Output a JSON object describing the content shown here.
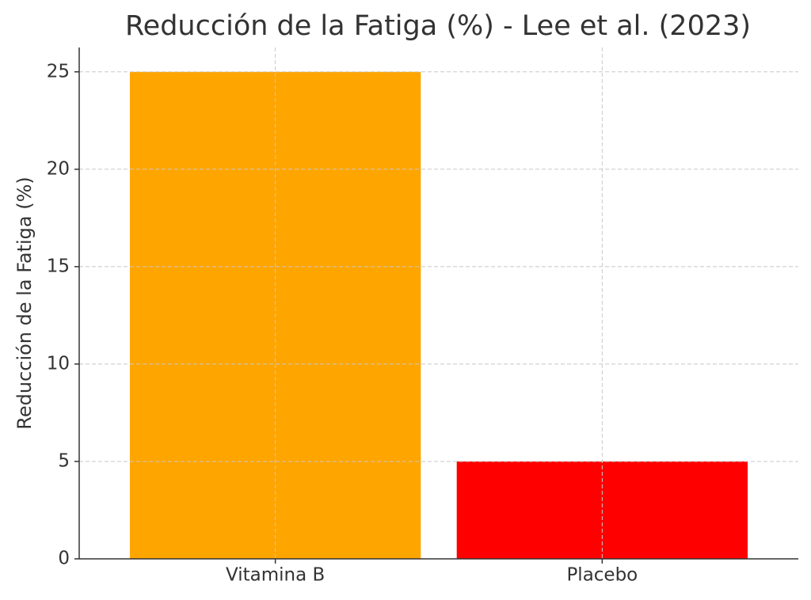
{
  "chart_data": {
    "type": "bar",
    "title": "Reducción de la Fatiga (%) - Lee et al. (2023)",
    "y_label": "Reducción de la Fatiga (%)",
    "categories": [
      "Vitamina B",
      "Placebo"
    ],
    "values": [
      25,
      5
    ],
    "colors": [
      "#FFA500",
      "#FF0000"
    ],
    "ylim": [
      0,
      26.25
    ],
    "yticks": [
      0,
      5,
      10,
      15,
      20,
      25
    ],
    "grid": true
  }
}
